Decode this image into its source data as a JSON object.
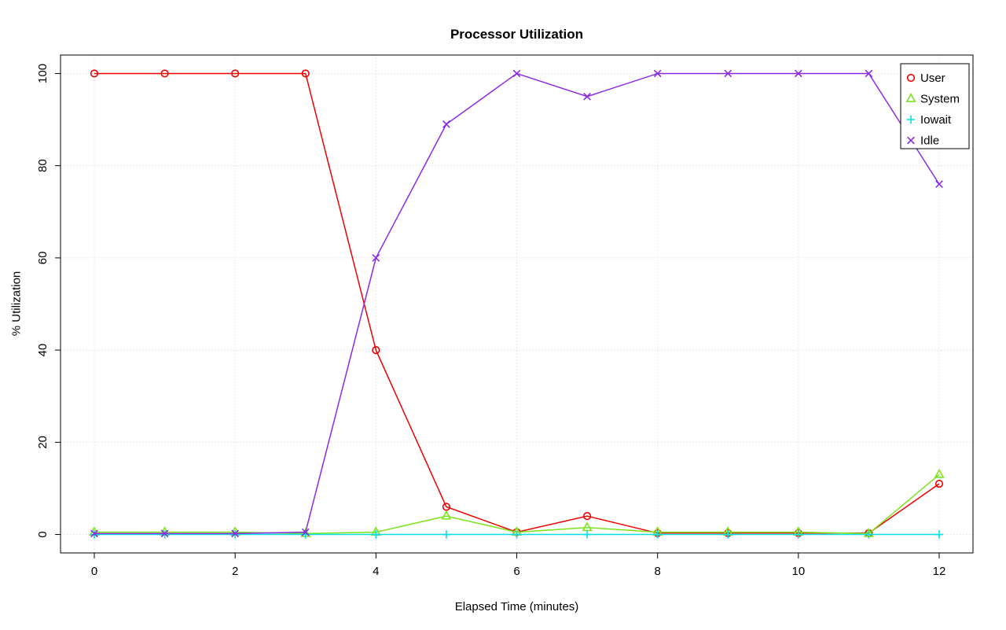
{
  "chart_data": {
    "type": "line",
    "title": "Processor Utilization",
    "xlabel": "Elapsed Time (minutes)",
    "ylabel": "% Utilization",
    "x": [
      0,
      1,
      2,
      3,
      4,
      5,
      6,
      7,
      8,
      9,
      10,
      11,
      12
    ],
    "xlim": [
      0,
      12
    ],
    "ylim": [
      0,
      100
    ],
    "x_ticks": [
      0,
      2,
      4,
      6,
      8,
      10,
      12
    ],
    "y_ticks": [
      0,
      20,
      40,
      60,
      80,
      100
    ],
    "grid": true,
    "grid_style": "dotted",
    "grid_color": "#d2d2d2",
    "legend_position": "top-right",
    "series": [
      {
        "name": "User",
        "marker": "circle",
        "color": "#ee0000",
        "values": [
          100,
          100,
          100,
          100,
          40,
          6,
          0.5,
          4,
          0.3,
          0.3,
          0.3,
          0.3,
          11
        ]
      },
      {
        "name": "System",
        "marker": "triangle",
        "color": "#7ce31d",
        "values": [
          0.5,
          0.5,
          0.5,
          0.2,
          0.5,
          4,
          0.5,
          1.5,
          0.5,
          0.5,
          0.5,
          0.2,
          13
        ]
      },
      {
        "name": "Iowait",
        "marker": "plus",
        "color": "#00e0e5",
        "values": [
          0,
          0,
          0,
          0,
          0,
          0,
          0,
          0,
          0,
          0,
          0,
          0,
          0
        ]
      },
      {
        "name": "Idle",
        "marker": "x",
        "color": "#8a2be2",
        "values": [
          0.2,
          0.2,
          0.2,
          0.5,
          60,
          89,
          100,
          95,
          100,
          100,
          100,
          100,
          76
        ]
      }
    ]
  }
}
